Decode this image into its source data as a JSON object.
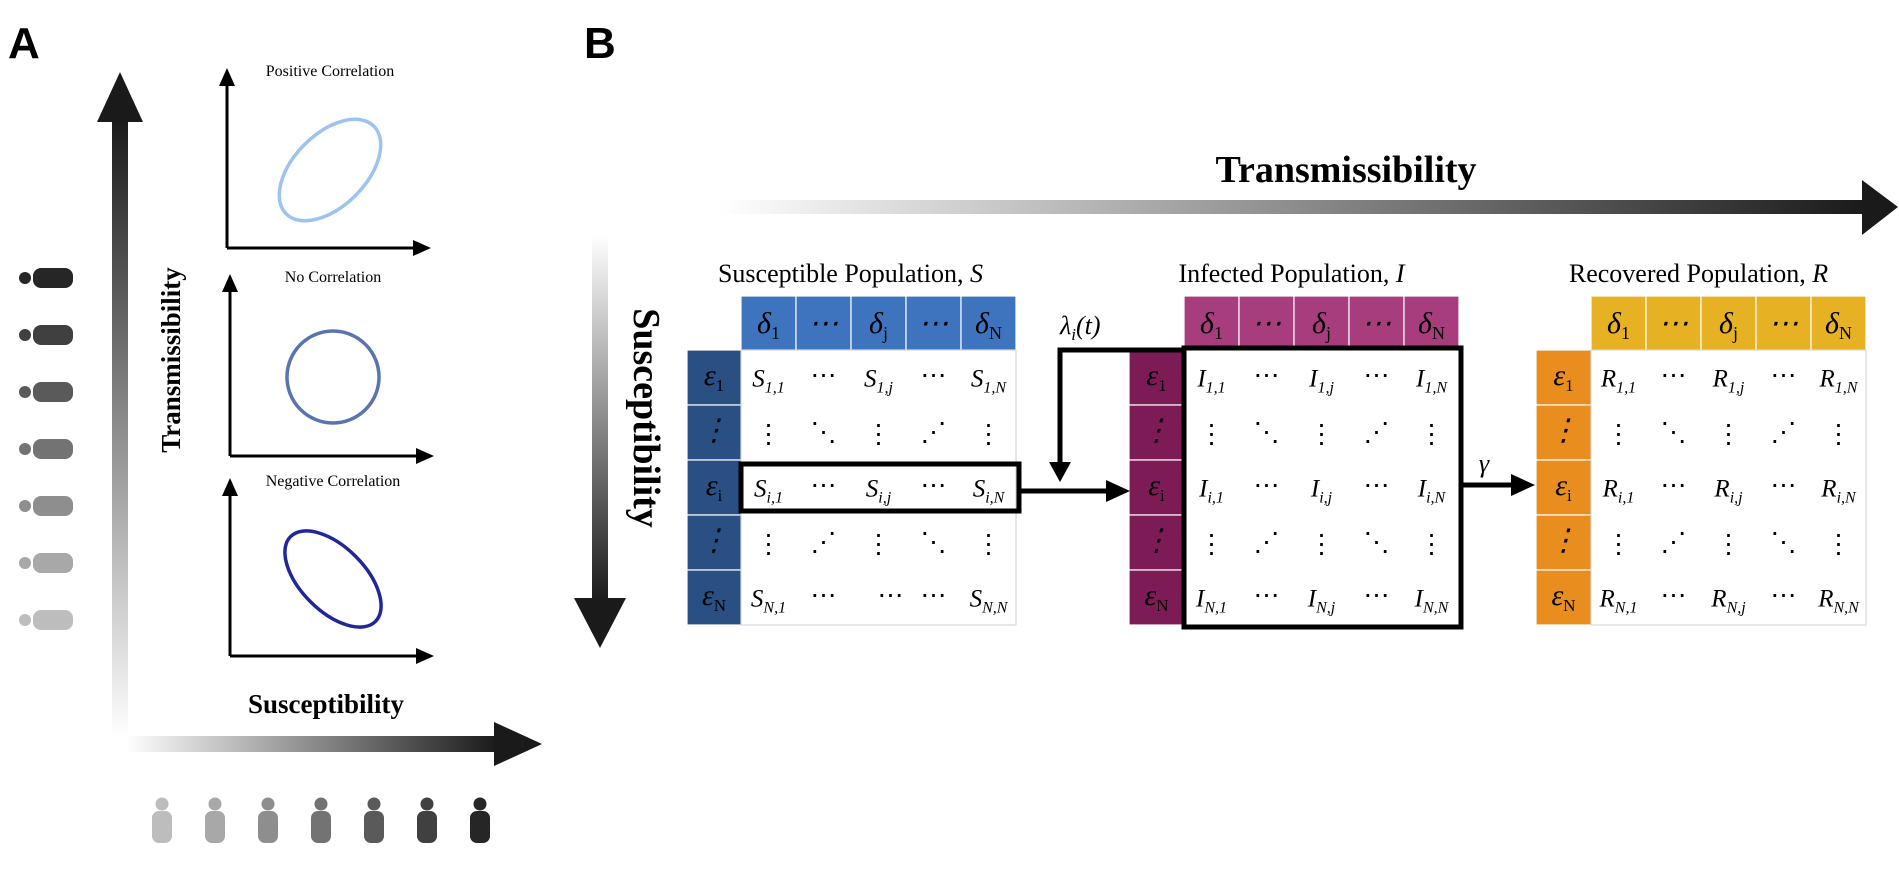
{
  "panel_a": {
    "label": "A",
    "plots": [
      {
        "title": "Positive Correlation",
        "color": "#9cc4ef"
      },
      {
        "title": "No Correlation",
        "color": "#5a74b0"
      },
      {
        "title": "Negative Correlation",
        "color": "#20279a"
      }
    ],
    "y_axis_label": "Transmissibility",
    "x_axis_label": "Susceptibility"
  },
  "panel_b": {
    "label": "B",
    "transmissibility_label": "Transmissibility",
    "susceptibility_label": "Susceptibility",
    "force_of_infection": "λ",
    "force_sub": "i",
    "force_arg": "(t)",
    "recovery_rate": "γ",
    "populations": [
      {
        "key": "S",
        "title": "Susceptible Population, ",
        "symbol": "S",
        "header_color": "#3d74bd",
        "row_color": "#294f83"
      },
      {
        "key": "I",
        "title": "Infected Population, ",
        "symbol": "I",
        "header_color": "#a83d7d",
        "row_color": "#7d1b56"
      },
      {
        "key": "R",
        "title": "Recovered Population, ",
        "symbol": "R",
        "header_color": "#e7b124",
        "row_color": "#e88d1e"
      }
    ],
    "column_headers": [
      {
        "sym": "δ",
        "sub": "1"
      },
      {
        "sym": "⋯",
        "sub": ""
      },
      {
        "sym": "δ",
        "sub": "j"
      },
      {
        "sym": "⋯",
        "sub": ""
      },
      {
        "sym": "δ",
        "sub": "N"
      }
    ],
    "row_headers": [
      {
        "sym": "ε",
        "sub": "1"
      },
      {
        "sym": "⋮",
        "sub": ""
      },
      {
        "sym": "ε",
        "sub": "i"
      },
      {
        "sym": "⋮",
        "sub": ""
      },
      {
        "sym": "ε",
        "sub": "N"
      }
    ],
    "cell_subscripts": [
      [
        "1,1",
        "",
        "1,j",
        "",
        "1,N"
      ],
      [
        "",
        "",
        "",
        "",
        ""
      ],
      [
        "i,1",
        "",
        "i,j",
        "",
        "i,N"
      ],
      [
        "",
        "",
        "",
        "",
        ""
      ],
      [
        "N,1",
        "",
        "N,j",
        "",
        "N,N"
      ]
    ]
  }
}
